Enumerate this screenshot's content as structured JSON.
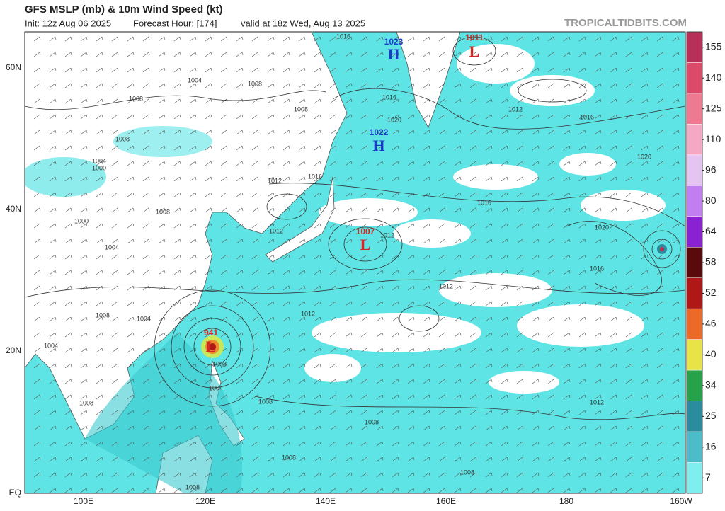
{
  "header": {
    "title": "GFS MSLP (mb) & 10m Wind Speed (kt)",
    "init": "Init: 12z Aug 06 2025",
    "forecast_hour": "Forecast Hour: [174]",
    "valid": "valid at 18z Wed, Aug 13 2025",
    "credit": "TROPICALTIDBITS.COM"
  },
  "map": {
    "lat_labels": [
      "60N",
      "40N",
      "20N",
      "EQ"
    ],
    "lon_labels": [
      "100E",
      "120E",
      "140E",
      "160E",
      "180",
      "160W"
    ],
    "pressure_centers": [
      {
        "symbol": "H",
        "label": "1023"
      },
      {
        "symbol": "L",
        "label": "1011"
      },
      {
        "symbol": "H",
        "label": "1022"
      },
      {
        "symbol": "L",
        "label": "1007"
      },
      {
        "symbol": "L",
        "label": "941"
      }
    ],
    "isobar_labels": [
      "1016",
      "1004",
      "1008",
      "1008",
      "1008",
      "1016",
      "1020",
      "1012",
      "1016",
      "1008",
      "1004",
      "1000",
      "1016",
      "1012",
      "1020",
      "1008",
      "1000",
      "1016",
      "1012",
      "1012",
      "1004",
      "1020",
      "1016",
      "1012",
      "1012",
      "1008",
      "1004",
      "1004",
      "1008",
      "1004",
      "1008",
      "1008",
      "1012",
      "1008",
      "1008",
      "1008",
      "1008"
    ]
  },
  "colorbar": {
    "ticks": [
      155,
      140,
      125,
      110,
      96,
      80,
      64,
      58,
      52,
      46,
      40,
      34,
      25,
      16,
      7
    ],
    "colors": [
      "#b8305a",
      "#dc4a6a",
      "#ee7a92",
      "#f4a8c4",
      "#e6c4f2",
      "#c07ef0",
      "#8a22d2",
      "#5a0a0a",
      "#b01818",
      "#ec6a28",
      "#e8e448",
      "#26a24a",
      "#2a8c9c",
      "#4cbcc8",
      "#7eeeee"
    ]
  }
}
